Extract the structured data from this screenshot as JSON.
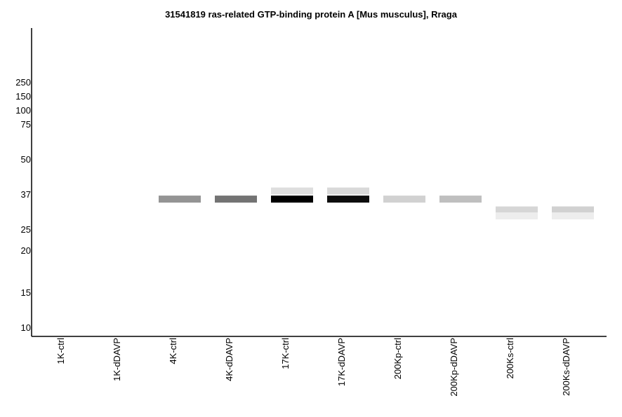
{
  "chart_data": {
    "type": "heatmap",
    "title": "31541819 ras-related GTP-binding protein A [Mus musculus], Rraga",
    "y_ticks": [
      "250",
      "150",
      "100",
      "75",
      "50",
      "37",
      "25",
      "20",
      "15",
      "10"
    ],
    "lanes": [
      "1K-ctrl",
      "1K-dDAVP",
      "4K-ctrl",
      "4K-dDAVP",
      "17K-ctrl",
      "17K-dDAVP",
      "200Kp-ctrl",
      "200Kp-dDAVP",
      "200Ks-ctrl",
      "200Ks-dDAVP"
    ],
    "bands": [
      {
        "lane": "4K-ctrl",
        "mw": 35,
        "intensity": 0.42
      },
      {
        "lane": "4K-dDAVP",
        "mw": 35,
        "intensity": 0.55
      },
      {
        "lane": "17K-ctrl",
        "mw": 35,
        "intensity": 1.0
      },
      {
        "lane": "17K-ctrl",
        "mw": 38,
        "intensity": 0.13
      },
      {
        "lane": "17K-dDAVP",
        "mw": 35,
        "intensity": 0.95
      },
      {
        "lane": "17K-dDAVP",
        "mw": 38,
        "intensity": 0.15
      },
      {
        "lane": "200Kp-ctrl",
        "mw": 35,
        "intensity": 0.18
      },
      {
        "lane": "200Kp-dDAVP",
        "mw": 35,
        "intensity": 0.25
      },
      {
        "lane": "200Ks-ctrl",
        "mw": 31,
        "intensity": 0.16
      },
      {
        "lane": "200Ks-ctrl",
        "mw": 29,
        "intensity": 0.07
      },
      {
        "lane": "200Ks-dDAVP",
        "mw": 31,
        "intensity": 0.18
      },
      {
        "lane": "200Ks-dDAVP",
        "mw": 29,
        "intensity": 0.07
      }
    ]
  }
}
